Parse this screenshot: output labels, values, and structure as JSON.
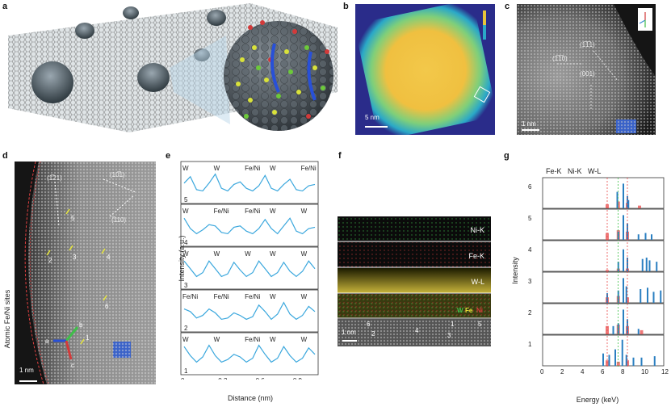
{
  "panels": {
    "a": {
      "label": "a"
    },
    "b": {
      "label": "b",
      "scale": "5 nm"
    },
    "c": {
      "label": "c",
      "scale": "1 nm",
      "dirs": [
        "(1̅1̅1)",
        "(1̅1̅0)",
        "(001)"
      ],
      "axes": [
        "x",
        "y",
        "z"
      ]
    },
    "d": {
      "label": "d",
      "scale": "1 nm",
      "side_label": "Atomic Fe/Ni sites",
      "dirs": [
        "(1̅21)",
        "(10̅1)",
        "(̅110)"
      ],
      "sites": [
        "1",
        "2",
        "3",
        "4",
        "5",
        "6"
      ],
      "arrows": [
        "a",
        "b",
        "c"
      ]
    },
    "e": {
      "label": "e",
      "ylabel": "Intensity (a.u.)",
      "xlabel": "Distance (nm)"
    },
    "f": {
      "label": "f",
      "scale": "1 nm",
      "maps": [
        "Ni-K",
        "Fe-K",
        "W-L"
      ],
      "overlay": [
        "W",
        "Fe",
        "Ni"
      ],
      "sites": [
        "1",
        "2",
        "3",
        "4",
        "5",
        "6"
      ]
    },
    "g": {
      "label": "g",
      "ylabel": "Intensity",
      "xlabel": "Energy (keV)",
      "peaks": [
        "Fe-K",
        "Ni-K",
        "W-L"
      ]
    }
  },
  "colors": {
    "trace": "#3aa7dd",
    "fe_line": "#e84b4b",
    "ni_line": "#3fbf4a",
    "w_line": "#e84b4b",
    "bar_w": "#2a7fc1",
    "bar_red": "#e84b4b"
  },
  "chart_data": [
    {
      "type": "line",
      "panel": "e",
      "xlabel": "Distance (nm)",
      "ylabel": "Intensity (a.u.)",
      "xlim": [
        0,
        1.05
      ],
      "xticks": [
        "0",
        "0.3",
        "0.6",
        "0.9"
      ],
      "x": [
        0,
        0.05,
        0.1,
        0.15,
        0.2,
        0.25,
        0.3,
        0.35,
        0.4,
        0.45,
        0.5,
        0.55,
        0.6,
        0.65,
        0.7,
        0.75,
        0.8,
        0.85,
        0.9,
        0.95,
        1.0,
        1.05
      ],
      "series": [
        {
          "name": "5",
          "peaks": [
            "W",
            "W",
            "Fe/Ni",
            "W",
            "Fe/Ni"
          ],
          "values": [
            0.6,
            0.85,
            0.35,
            0.3,
            0.6,
            0.95,
            0.4,
            0.3,
            0.55,
            0.65,
            0.4,
            0.3,
            0.5,
            0.9,
            0.4,
            0.3,
            0.55,
            0.75,
            0.35,
            0.3,
            0.5,
            0.55
          ]
        },
        {
          "name": "4",
          "peaks": [
            "W",
            "Fe/Ni",
            "Fe/Ni",
            "W",
            "W"
          ],
          "values": [
            0.9,
            0.5,
            0.3,
            0.45,
            0.65,
            0.6,
            0.35,
            0.3,
            0.55,
            0.6,
            0.4,
            0.3,
            0.5,
            0.85,
            0.5,
            0.3,
            0.6,
            0.9,
            0.4,
            0.3,
            0.5,
            0.55
          ]
        },
        {
          "name": "3",
          "peaks": [
            "W",
            "W",
            "W",
            "W",
            "W"
          ],
          "values": [
            0.9,
            0.6,
            0.3,
            0.45,
            0.9,
            0.6,
            0.3,
            0.4,
            0.85,
            0.55,
            0.3,
            0.45,
            0.9,
            0.6,
            0.3,
            0.45,
            0.85,
            0.5,
            0.3,
            0.5,
            0.9,
            0.6
          ]
        },
        {
          "name": "2",
          "peaks": [
            "Fe/Ni",
            "Fe/Ni",
            "Fe/Ni",
            "W",
            "W"
          ],
          "values": [
            0.7,
            0.6,
            0.35,
            0.45,
            0.7,
            0.55,
            0.3,
            0.35,
            0.55,
            0.45,
            0.3,
            0.4,
            0.85,
            0.6,
            0.3,
            0.5,
            0.95,
            0.5,
            0.3,
            0.45,
            0.8,
            0.6
          ]
        },
        {
          "name": "1",
          "peaks": [
            "W",
            "W",
            "Fe/Ni",
            "W",
            "W"
          ],
          "values": [
            0.9,
            0.55,
            0.3,
            0.5,
            0.95,
            0.55,
            0.3,
            0.4,
            0.6,
            0.5,
            0.3,
            0.45,
            0.95,
            0.6,
            0.3,
            0.45,
            0.9,
            0.55,
            0.3,
            0.45,
            0.85,
            0.6
          ]
        }
      ]
    },
    {
      "type": "bar",
      "panel": "g",
      "xlabel": "Energy (keV)",
      "ylabel": "Intensity",
      "xlim": [
        0,
        12
      ],
      "xticks": [
        "0",
        "2",
        "4",
        "6",
        "8",
        "10",
        "12"
      ],
      "reference_lines": {
        "Fe-K": 6.4,
        "Ni-K": 7.47,
        "W-L": 8.4
      },
      "series": [
        {
          "name": "6",
          "blue": [
            [
              7.4,
              0.6
            ],
            [
              8.0,
              0.9
            ],
            [
              8.4,
              0.45
            ],
            [
              8.5,
              0.3
            ]
          ],
          "red": [
            [
              6.4,
              0.15
            ],
            [
              7.5,
              0.25
            ],
            [
              8.4,
              0.2
            ],
            [
              9.6,
              0.1
            ]
          ]
        },
        {
          "name": "5",
          "blue": [
            [
              7.5,
              0.3
            ],
            [
              8.0,
              0.9
            ],
            [
              8.4,
              0.6
            ],
            [
              9.5,
              0.2
            ],
            [
              10.2,
              0.25
            ],
            [
              10.8,
              0.2
            ]
          ],
          "red": [
            [
              6.4,
              0.25
            ],
            [
              7.5,
              0.35
            ],
            [
              8.4,
              0.3
            ]
          ]
        },
        {
          "name": "4",
          "blue": [
            [
              7.5,
              0.35
            ],
            [
              8.0,
              0.8
            ],
            [
              8.4,
              0.5
            ],
            [
              9.9,
              0.45
            ],
            [
              10.3,
              0.5
            ],
            [
              10.6,
              0.4
            ],
            [
              11.3,
              0.35
            ]
          ],
          "red": [
            [
              6.4,
              0.05
            ],
            [
              7.5,
              0.1
            ],
            [
              8.4,
              0.1
            ]
          ]
        },
        {
          "name": "3",
          "blue": [
            [
              6.4,
              0.35
            ],
            [
              7.5,
              0.45
            ],
            [
              8.0,
              0.9
            ],
            [
              8.3,
              0.6
            ],
            [
              9.7,
              0.5
            ],
            [
              10.4,
              0.55
            ],
            [
              11.0,
              0.4
            ],
            [
              11.7,
              0.45
            ]
          ],
          "red": [
            [
              6.4,
              0.2
            ],
            [
              7.5,
              0.25
            ],
            [
              8.4,
              0.2
            ]
          ]
        },
        {
          "name": "2",
          "blue": [
            [
              7.0,
              0.3
            ],
            [
              7.5,
              0.4
            ],
            [
              8.0,
              0.9
            ],
            [
              8.4,
              0.55
            ],
            [
              9.5,
              0.2
            ]
          ],
          "red": [
            [
              6.4,
              0.3
            ],
            [
              7.5,
              0.35
            ],
            [
              8.4,
              0.3
            ],
            [
              9.8,
              0.15
            ]
          ]
        },
        {
          "name": "1",
          "blue": [
            [
              6.0,
              0.45
            ],
            [
              6.6,
              0.4
            ],
            [
              7.2,
              0.6
            ],
            [
              7.9,
              0.95
            ],
            [
              8.3,
              0.4
            ],
            [
              9.0,
              0.3
            ],
            [
              9.8,
              0.3
            ],
            [
              11.1,
              0.35
            ]
          ],
          "red": [
            [
              6.4,
              0.2
            ],
            [
              7.5,
              0.15
            ],
            [
              8.4,
              0.2
            ]
          ]
        }
      ]
    }
  ]
}
